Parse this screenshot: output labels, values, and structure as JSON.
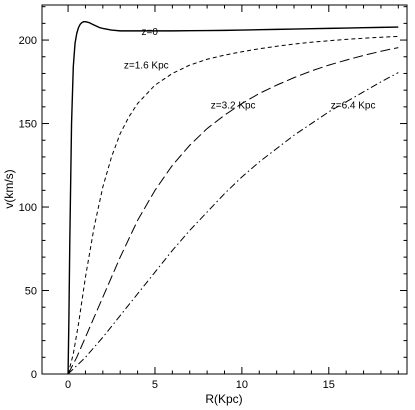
{
  "chart_data": {
    "type": "line",
    "title": "",
    "xlabel": "R(Kpc)",
    "ylabel": "v(km/s)",
    "xlim": [
      -1.5,
      19.5
    ],
    "ylim": [
      0,
      221
    ],
    "x_ticks": [
      0,
      5,
      10,
      15
    ],
    "y_ticks": [
      0,
      50,
      100,
      150,
      200
    ],
    "grid": false,
    "legend": "none",
    "series": [
      {
        "name": "z=0",
        "style": "solid",
        "label_at": [
          4.7,
          203
        ],
        "x": [
          0,
          0.05,
          0.1,
          0.2,
          0.3,
          0.4,
          0.5,
          0.6,
          0.7,
          0.8,
          0.9,
          1.0,
          1.2,
          1.4,
          1.6,
          1.8,
          2.0,
          2.5,
          3.0,
          4,
          5,
          6,
          7,
          8,
          9,
          10,
          11,
          12,
          13,
          14,
          15,
          16,
          17,
          18,
          19
        ],
        "y": [
          0,
          35,
          80,
          150,
          184,
          198,
          204,
          207.5,
          209.5,
          210.5,
          211,
          211,
          210.5,
          209.5,
          208.5,
          207.5,
          207,
          206,
          205.5,
          205.5,
          205.5,
          205.5,
          205.6,
          205.7,
          205.8,
          206,
          206.2,
          206.4,
          206.6,
          206.8,
          207,
          207.2,
          207.4,
          207.6,
          207.8
        ]
      },
      {
        "name": "z=1.6 Kpc",
        "style": "short-dash",
        "label_at": [
          4.5,
          183
        ],
        "x": [
          0,
          0.3,
          0.6,
          1,
          1.5,
          2,
          2.5,
          3,
          3.5,
          4,
          5,
          6,
          7,
          8,
          9,
          10,
          11,
          12,
          13,
          14,
          15,
          16,
          17,
          18,
          19
        ],
        "y": [
          0,
          12,
          30,
          58,
          88,
          112,
          130,
          144,
          154,
          162,
          173,
          180,
          185,
          188.5,
          191,
          193,
          194.8,
          196.3,
          197.6,
          198.7,
          199.6,
          200.4,
          201.1,
          201.7,
          202.2
        ]
      },
      {
        "name": "z=3.2 Kpc",
        "style": "long-dash",
        "label_at": [
          9.5,
          159
        ],
        "x": [
          0,
          0.5,
          1,
          1.5,
          2,
          3,
          4,
          5,
          6,
          7,
          8,
          9,
          10,
          11,
          12,
          13,
          14,
          15,
          16,
          17,
          18,
          19
        ],
        "y": [
          0,
          10,
          22,
          34,
          46,
          70,
          92,
          110,
          125,
          137,
          147,
          155,
          162,
          168,
          173,
          177.5,
          181.5,
          185,
          188,
          190.8,
          193.3,
          195.5
        ]
      },
      {
        "name": "z=6.4 Kpc",
        "style": "dash-dot",
        "label_at": [
          16.4,
          159
        ],
        "x": [
          0,
          1,
          2,
          3,
          4,
          5,
          6,
          7,
          8,
          9,
          10,
          11,
          12,
          13,
          14,
          15,
          16,
          17,
          18,
          19
        ],
        "y": [
          0,
          10,
          22,
          35,
          48,
          61,
          74,
          86,
          97,
          108,
          118,
          127,
          135,
          143,
          150,
          157,
          163,
          169,
          175,
          180.5
        ]
      }
    ]
  }
}
